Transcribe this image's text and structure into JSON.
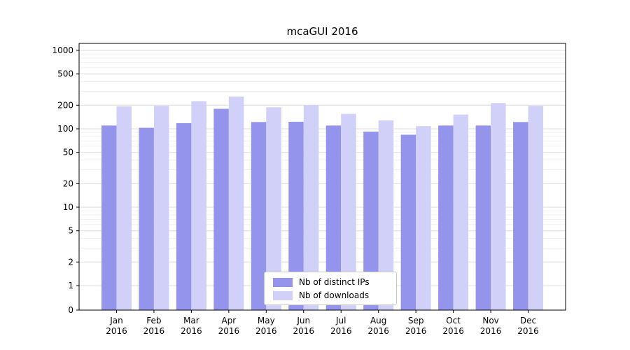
{
  "title": "mcaGUI 2016",
  "chart_data": {
    "type": "bar",
    "title": "mcaGUI 2016",
    "categories": [
      "Jan",
      "Feb",
      "Mar",
      "Apr",
      "May",
      "Jun",
      "Jul",
      "Aug",
      "Sep",
      "Oct",
      "Nov",
      "Dec"
    ],
    "year_label": "2016",
    "series": [
      {
        "name": "Nb of distinct IPs",
        "color": "#9494ec",
        "values": [
          110,
          103,
          118,
          180,
          122,
          123,
          110,
          92,
          84,
          110,
          110,
          122
        ]
      },
      {
        "name": "Nb of downloads",
        "color": "#d0d0f8",
        "values": [
          193,
          196,
          225,
          258,
          188,
          200,
          155,
          128,
          108,
          152,
          213,
          196
        ]
      }
    ],
    "y_ticks": [
      0,
      1,
      2,
      5,
      10,
      20,
      50,
      100,
      200,
      500,
      1000
    ],
    "y_scale": "symlog",
    "ylim": [
      0,
      1000
    ],
    "grid": true,
    "legend_position": "lower center"
  },
  "colors": {
    "background": "#ffffff",
    "grid_major": "#dcdcdc",
    "grid_minor": "#f0f0f0",
    "axis": "#000000",
    "text": "#000000",
    "legend_border": "#c8c8c8"
  }
}
